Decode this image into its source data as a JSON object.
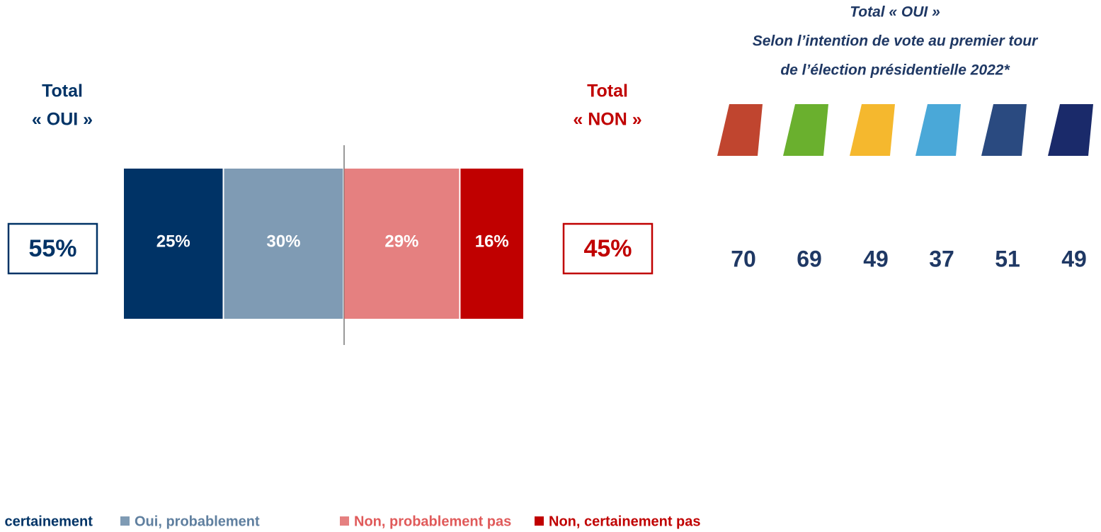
{
  "chart_data": {
    "type": "stacked-bar",
    "orientation": "horizontal",
    "xlim": [
      0,
      100
    ],
    "series": [
      {
        "name": "Oui, certainement",
        "color": "#003366",
        "legend_text_color": "#003366",
        "values": [
          25
        ],
        "value_labels": [
          "25%"
        ]
      },
      {
        "name": "Oui, probablement",
        "color": "#7f9bb4",
        "legend_text_color": "#5f7f9f",
        "values": [
          30
        ],
        "value_labels": [
          "30%"
        ]
      },
      {
        "name": "Non, probablement pas",
        "color": "#e58080",
        "legend_text_color": "#e05a5a",
        "values": [
          29
        ],
        "value_labels": [
          "29%"
        ]
      },
      {
        "name": "Non, certainement pas",
        "color": "#c00000",
        "legend_text_color": "#c00000",
        "values": [
          16
        ],
        "value_labels": [
          "16%"
        ]
      }
    ],
    "totals": [
      {
        "title": [
          "Total",
          "« OUI »"
        ],
        "value": 55,
        "value_label": "55%",
        "color": "#003366"
      },
      {
        "title": [
          "Total",
          "« NON »"
        ],
        "value": 45,
        "value_label": "45%",
        "color": "#c00000"
      }
    ],
    "panel": {
      "title": [
        "Total «  OUI »",
        "Selon l’intention de vote au premier tour",
        "de l’élection présidentielle 2022*"
      ],
      "values": [
        70,
        69,
        49,
        37,
        51,
        49
      ],
      "color": "#1f3864"
    }
  }
}
